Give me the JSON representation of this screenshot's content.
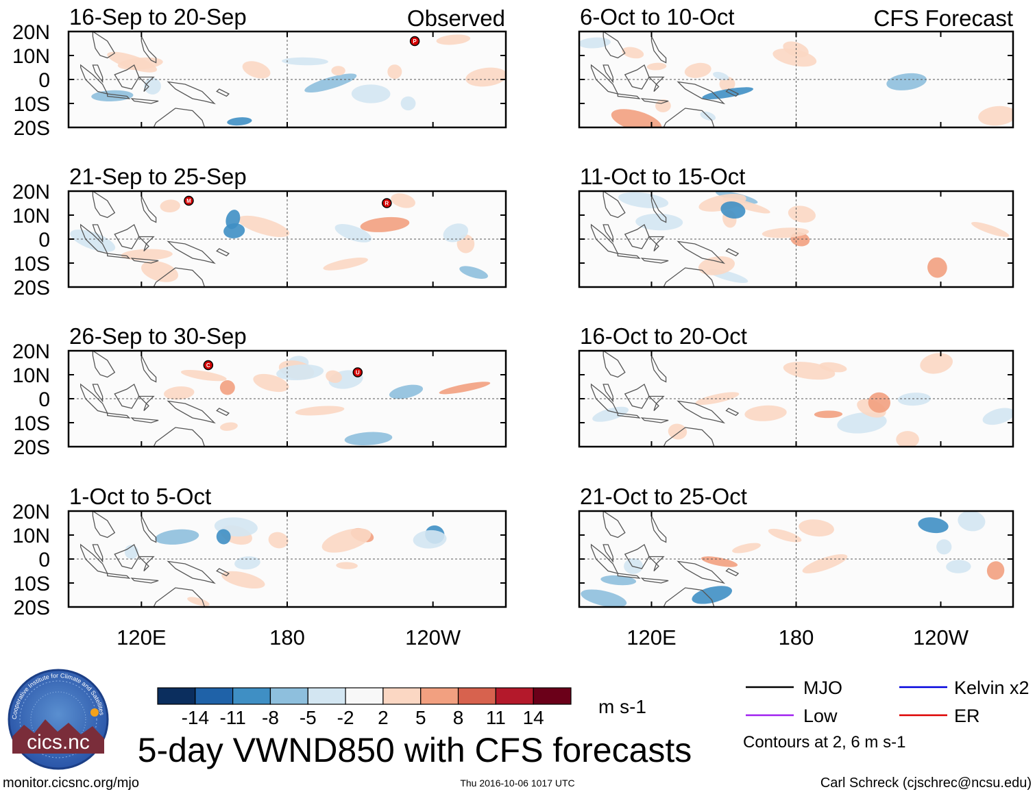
{
  "title": "5-day VWND850 with CFS forecasts",
  "column_headers": {
    "observed": "Observed",
    "forecast": "CFS Forecast"
  },
  "chart_data": {
    "type": "heatmap",
    "variable": "VWND850",
    "units": "m s-1",
    "lat_ticks": [
      "20N",
      "10N",
      "0",
      "10S",
      "20S"
    ],
    "lat_values": [
      20,
      10,
      0,
      -10,
      -20
    ],
    "lon_ticks": [
      "120E",
      "180",
      "120W"
    ],
    "lon_values": [
      120,
      180,
      240
    ],
    "lon_range": [
      90,
      270
    ],
    "lat_range": [
      -20,
      20
    ],
    "panels": [
      {
        "period": "16-Sep to 20-Sep",
        "kind": "observed",
        "storms": [
          {
            "label": "P",
            "lon": 232.5,
            "lat": 16
          }
        ]
      },
      {
        "period": "21-Sep to 25-Sep",
        "kind": "observed",
        "storms": [
          {
            "label": "M",
            "lon": 139.5,
            "lat": 16
          },
          {
            "label": "R",
            "lon": 221,
            "lat": 15
          }
        ]
      },
      {
        "period": "26-Sep to 30-Sep",
        "kind": "observed",
        "storms": [
          {
            "label": "C",
            "lon": 147.5,
            "lat": 14
          },
          {
            "label": "U",
            "lon": 209,
            "lat": 11
          }
        ]
      },
      {
        "period": "1-Oct to 5-Oct",
        "kind": "observed",
        "storms": []
      },
      {
        "period": "6-Oct to 10-Oct",
        "kind": "forecast",
        "storms": []
      },
      {
        "period": "11-Oct to 15-Oct",
        "kind": "forecast",
        "storms": []
      },
      {
        "period": "16-Oct to 20-Oct",
        "kind": "forecast",
        "storms": []
      },
      {
        "period": "21-Oct to 25-Oct",
        "kind": "forecast",
        "storms": []
      }
    ],
    "colorbar": {
      "labels": [
        "-14",
        "-11",
        "-8",
        "-5",
        "-2",
        "2",
        "5",
        "8",
        "11",
        "14"
      ],
      "colors": [
        "#0b2e5e",
        "#1f62a8",
        "#3f8fc4",
        "#8ebfdd",
        "#d3e6f2",
        "#f8f8f8",
        "#fbd7c3",
        "#f2a080",
        "#d7624e",
        "#b4192b",
        "#6b0019"
      ],
      "units": "m s-1"
    },
    "legend": [
      {
        "label": "MJO",
        "color": "#000000"
      },
      {
        "label": "Kelvin x2",
        "color": "#0000dd"
      },
      {
        "label": "Low",
        "color": "#a020f0"
      },
      {
        "label": "ER",
        "color": "#dd0000"
      }
    ],
    "contour_note": "Contours at 2, 6 m s-1"
  },
  "logo_text": "cics.nc",
  "logo_ring_text": "Cooperative Institute for Climate and Satellites",
  "footer": {
    "url": "monitor.cicsnc.org/mjo",
    "timestamp": "Thu 2016-10-06 1017 UTC",
    "author": "Carl Schreck (cjschrec@ncsu.edu)"
  }
}
